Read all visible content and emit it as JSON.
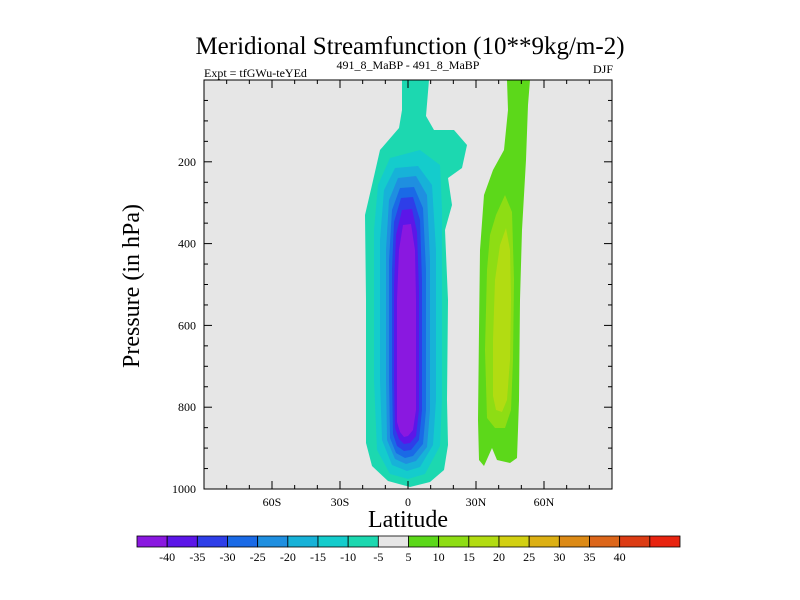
{
  "chart_data": {
    "type": "heatmap",
    "title": "Meridional Streamfunction (10**9kg/m-2)",
    "experiment_label": "Expt = tfGWu-teYEd",
    "comparison_label": "491_8_MaBP - 491_8_MaBP",
    "season_label": "DJF",
    "xlabel": "Latitude",
    "ylabel": "Pressure (in hPa)",
    "xlim": [
      -90,
      90
    ],
    "ylim": [
      1000,
      0
    ],
    "x_ticks": [
      {
        "value": -60,
        "label": "60S"
      },
      {
        "value": -30,
        "label": "30S"
      },
      {
        "value": 0,
        "label": "0"
      },
      {
        "value": 30,
        "label": "30N"
      },
      {
        "value": 60,
        "label": "60N"
      }
    ],
    "y_ticks": [
      {
        "value": 200,
        "label": "200"
      },
      {
        "value": 400,
        "label": "400"
      },
      {
        "value": 600,
        "label": "600"
      },
      {
        "value": 800,
        "label": "800"
      },
      {
        "value": 1000,
        "label": "1000"
      }
    ],
    "background_color": "#e6e6e6",
    "contour_levels": [
      -45,
      -40,
      -35,
      -30,
      -25,
      -20,
      -15,
      -10,
      -5,
      5,
      10,
      15,
      20,
      25,
      30,
      35,
      40,
      45
    ],
    "colorbar_labels": [
      "-40",
      "-35",
      "-30",
      "-25",
      "-20",
      "-15",
      "-10",
      "-5",
      "5",
      "10",
      "15",
      "20",
      "25",
      "30",
      "35",
      "40"
    ],
    "colorbar_colors": [
      "#8a18e0",
      "#5c16e8",
      "#2e3ee8",
      "#1a6ae6",
      "#1f8fe0",
      "#17b2d8",
      "#14cccc",
      "#1cd8b0",
      "#e6e6e6",
      "#5cd81a",
      "#8edd14",
      "#b2dc12",
      "#d2d012",
      "#dcb014",
      "#dc8a16",
      "#dc661a",
      "#dc3c14",
      "#e82410"
    ],
    "features": [
      {
        "name": "southern-cell",
        "lat_center": 0,
        "pressure_top": 0,
        "pressure_bottom": 985,
        "min_value": -40,
        "levels": [
          -5,
          -10,
          -15,
          -20,
          -25,
          -30,
          -35,
          -40
        ]
      },
      {
        "name": "northern-cell",
        "lat_center": 38,
        "pressure_top": 0,
        "pressure_bottom": 940,
        "max_value": 15,
        "levels": [
          5,
          10,
          15
        ]
      }
    ]
  }
}
